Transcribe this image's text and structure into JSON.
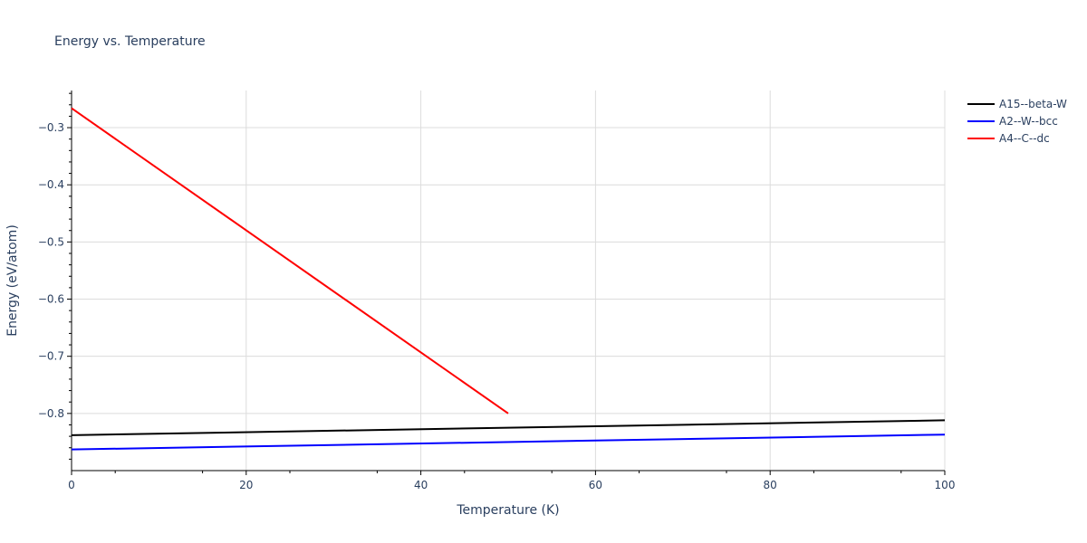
{
  "chart_data": {
    "type": "line",
    "title": "Energy vs. Temperature",
    "xlabel": "Temperature (K)",
    "ylabel": "Energy (eV/atom)",
    "xlim": [
      0,
      100
    ],
    "ylim": [
      -0.9,
      -0.235
    ],
    "x_ticks": [
      0,
      20,
      40,
      60,
      80,
      100
    ],
    "x_tick_labels": [
      "0",
      "20",
      "40",
      "60",
      "80",
      "100"
    ],
    "y_ticks": [
      -0.8,
      -0.7,
      -0.6,
      -0.5,
      -0.4,
      -0.3
    ],
    "y_tick_labels": [
      "−0.8",
      "−0.7",
      "−0.6",
      "−0.5",
      "−0.4",
      "−0.3"
    ],
    "grid": true,
    "legend_position": "top-right",
    "series": [
      {
        "name": "A15--beta-W",
        "color": "#000000",
        "x": [
          0,
          100
        ],
        "y": [
          -0.838,
          -0.812
        ]
      },
      {
        "name": "A2--W--bcc",
        "color": "#0000ff",
        "x": [
          0,
          100
        ],
        "y": [
          -0.863,
          -0.837
        ]
      },
      {
        "name": "A4--C--dc",
        "color": "#ff0000",
        "x": [
          0,
          50
        ],
        "y": [
          -0.266,
          -0.8
        ]
      }
    ]
  }
}
